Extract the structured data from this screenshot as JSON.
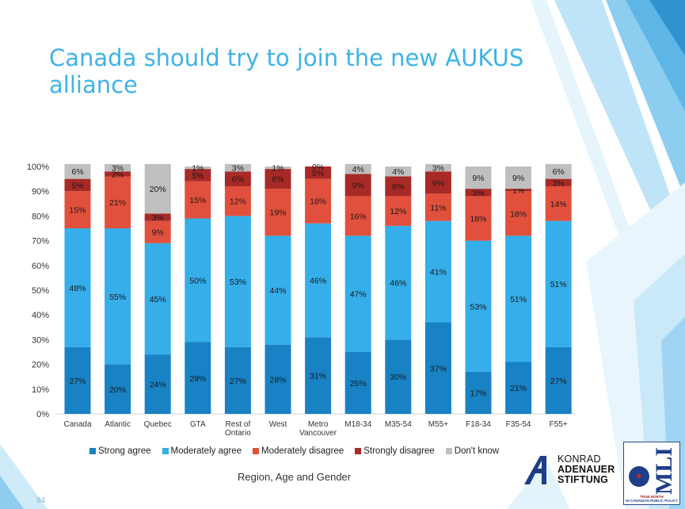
{
  "slide": {
    "title": "Canada should try to join the new AUKUS alliance",
    "page_number": "84"
  },
  "chart_data": {
    "type": "bar",
    "stacked": true,
    "title": "Canada should try to join the new AUKUS alliance",
    "xlabel": "Region, Age and Gender",
    "ylabel": "",
    "ylim": [
      0,
      100
    ],
    "yticks": [
      "0%",
      "10%",
      "20%",
      "30%",
      "40%",
      "50%",
      "60%",
      "70%",
      "80%",
      "90%",
      "100%"
    ],
    "categories": [
      [
        "Canada"
      ],
      [
        "Atlantic"
      ],
      [
        "Quebec"
      ],
      [
        "GTA"
      ],
      [
        "Rest of",
        "Ontario"
      ],
      [
        "West"
      ],
      [
        "Metro",
        "Vancouver"
      ],
      [
        "M18-34"
      ],
      [
        "M35-54"
      ],
      [
        "M55+"
      ],
      [
        "F18-34"
      ],
      [
        "F35-54"
      ],
      [
        "F55+"
      ]
    ],
    "legend_position": "bottom",
    "series": [
      {
        "name": "Strong agree",
        "color": "#1882c4",
        "values": [
          27,
          20,
          24,
          29,
          27,
          28,
          31,
          25,
          30,
          37,
          17,
          21,
          27
        ]
      },
      {
        "name": "Moderately agree",
        "color": "#35aee9",
        "values": [
          48,
          55,
          45,
          50,
          53,
          44,
          46,
          47,
          46,
          41,
          53,
          51,
          51
        ]
      },
      {
        "name": "Moderately disagree",
        "color": "#e1503c",
        "values": [
          15,
          21,
          9,
          15,
          12,
          19,
          18,
          16,
          12,
          11,
          18,
          18,
          14
        ]
      },
      {
        "name": "Strongly disagree",
        "color": "#a82a26",
        "values": [
          5,
          2,
          3,
          5,
          6,
          8,
          5,
          9,
          8,
          9,
          3,
          1,
          3
        ]
      },
      {
        "name": "Don't know",
        "color": "#bfbfbf",
        "values": [
          6,
          3,
          20,
          1,
          3,
          1,
          0,
          4,
          4,
          3,
          9,
          9,
          6
        ]
      }
    ]
  },
  "logos": {
    "kas": {
      "line1": "KONRAD",
      "line2": "ADENAUER",
      "line3": "STIFTUNG"
    },
    "mli": {
      "word": "MLI",
      "sub1": "TRUE NORTH",
      "sub2": "IN CANADIAN PUBLIC POLICY"
    }
  }
}
